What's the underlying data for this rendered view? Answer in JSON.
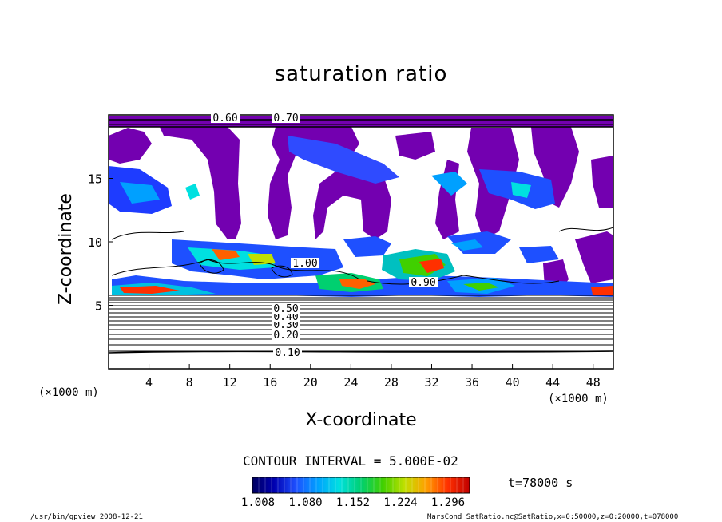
{
  "chart_data": {
    "type": "heatmap",
    "title": "saturation ratio",
    "xlabel": "X-coordinate",
    "ylabel": "Z-coordinate",
    "x_unit_label": "(×1000 m)",
    "xlim": [
      0,
      50
    ],
    "ylim": [
      0,
      20
    ],
    "x_ticks": [
      4,
      8,
      12,
      16,
      20,
      24,
      28,
      32,
      36,
      40,
      44,
      48
    ],
    "y_ticks": [
      5,
      10,
      15
    ],
    "contour_interval_label": "CONTOUR INTERVAL = 5.000E-02",
    "contour_labels": [
      "0.10",
      "0.20",
      "0.30",
      "0.40",
      "0.50",
      "0.60",
      "0.70",
      "0.90",
      "1.00"
    ],
    "colorbar": {
      "tick_labels": [
        "1.008",
        "1.080",
        "1.152",
        "1.224",
        "1.296"
      ],
      "colors": [
        "#000060",
        "#0000b0",
        "#1e50ff",
        "#00a0ff",
        "#00e0e0",
        "#00d070",
        "#40d000",
        "#c0e000",
        "#ffa000",
        "#ff3000",
        "#c00000"
      ]
    },
    "time_label": "t=78000 s",
    "colors": {
      "saturated_fill": "#7300b0",
      "contour_line": "#000000"
    }
  },
  "footer": {
    "left": "/usr/bin/gpview   2008-12-21",
    "right": "MarsCond_SatRatio.nc@SatRatio,x=0:50000,z=0:20000,t=078000"
  }
}
